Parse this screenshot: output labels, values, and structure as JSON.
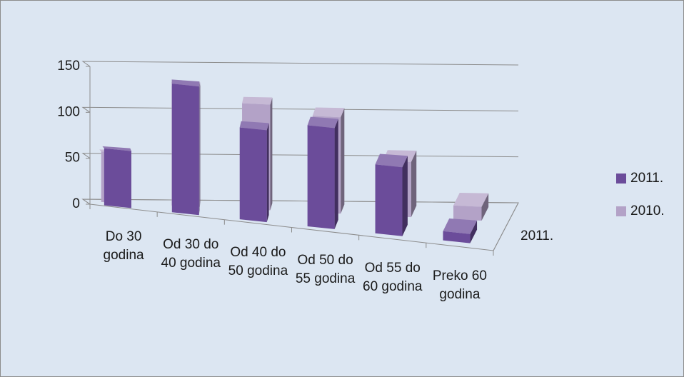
{
  "chart_data": {
    "type": "bar3d",
    "categories": [
      "Do 30 godina",
      "Od 30 do 40 godina",
      "Od 40 do 50 godina",
      "Od 50 do 55 godina",
      "Od 55 do 60 godina",
      "Preko 60 godina"
    ],
    "series": [
      {
        "name": "2011.",
        "color": "#6b4c9a",
        "values": [
          62,
          140,
          100,
          110,
          75,
          10
        ]
      },
      {
        "name": "2010.",
        "color": "#b3a2c7",
        "values": [
          55,
          130,
          115,
          105,
          60,
          15
        ]
      }
    ],
    "depth_label": "2011.",
    "ylim": [
      0,
      150
    ],
    "yticks": [
      0,
      50,
      100,
      150
    ],
    "grid": true,
    "legend": "right"
  }
}
